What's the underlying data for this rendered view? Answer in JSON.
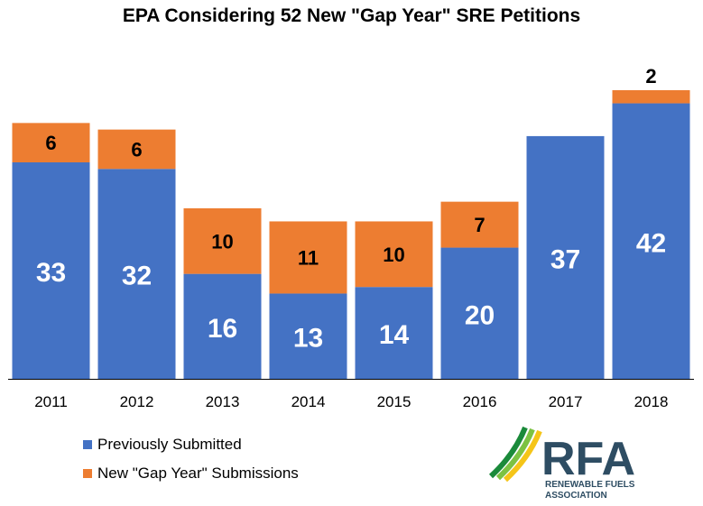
{
  "chart_data": {
    "type": "bar",
    "stacked": true,
    "title": "EPA Considering 52 New \"Gap Year\" SRE Petitions",
    "categories": [
      "2011",
      "2012",
      "2013",
      "2014",
      "2015",
      "2016",
      "2017",
      "2018"
    ],
    "series": [
      {
        "name": "Previously Submitted",
        "color": "#4472C4",
        "values": [
          33,
          32,
          16,
          13,
          14,
          20,
          37,
          42
        ],
        "labels": [
          "33",
          "32",
          "16",
          "13",
          "14",
          "20",
          "37",
          "42"
        ]
      },
      {
        "name": "New \"Gap Year\" Submissions",
        "color": "#ED7D31",
        "values": [
          6,
          6,
          10,
          11,
          10,
          7,
          0,
          2
        ],
        "labels": [
          "6",
          "6",
          "10",
          "11",
          "10",
          "7",
          "",
          "2"
        ]
      }
    ],
    "ylim": [
      0,
      44
    ],
    "grid": false,
    "legend": "bottom-left"
  },
  "logo": {
    "text": "RFA",
    "subtitle_line1": "RENEWABLE FUELS",
    "subtitle_line2": "ASSOCIATION",
    "colors": {
      "text": "#2e4d63",
      "stripe1": "#1a8a3a",
      "stripe2": "#7cc242",
      "stripe3": "#f5c518"
    }
  }
}
